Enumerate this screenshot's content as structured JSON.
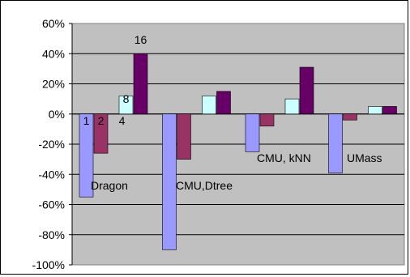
{
  "chart_data": {
    "type": "bar",
    "categories": [
      "Dragon",
      "CMU,Dtree",
      "CMU, kNN",
      "UMass"
    ],
    "series": [
      {
        "name": "1",
        "color": "#9999FF",
        "values": [
          -55,
          -90,
          -25,
          -39
        ]
      },
      {
        "name": "2",
        "color": "#993366",
        "values": [
          -26,
          -30,
          -8,
          -4
        ]
      },
      {
        "name": "4",
        "color": "#CCFFFF",
        "values": [
          0,
          0,
          0,
          0
        ]
      },
      {
        "name": "8",
        "color": "#CCFFFF",
        "values": [
          12,
          12,
          10,
          5
        ]
      },
      {
        "name": "16",
        "color": "#660066",
        "values": [
          40,
          15,
          31,
          5
        ]
      }
    ],
    "ylim": [
      -100,
      60
    ],
    "y_ticks": [
      60,
      40,
      20,
      0,
      -20,
      -40,
      -60,
      -80,
      -100
    ],
    "y_tick_format": "percent",
    "grid": true,
    "legend": "none",
    "plot_background": "#C0C0C0"
  }
}
